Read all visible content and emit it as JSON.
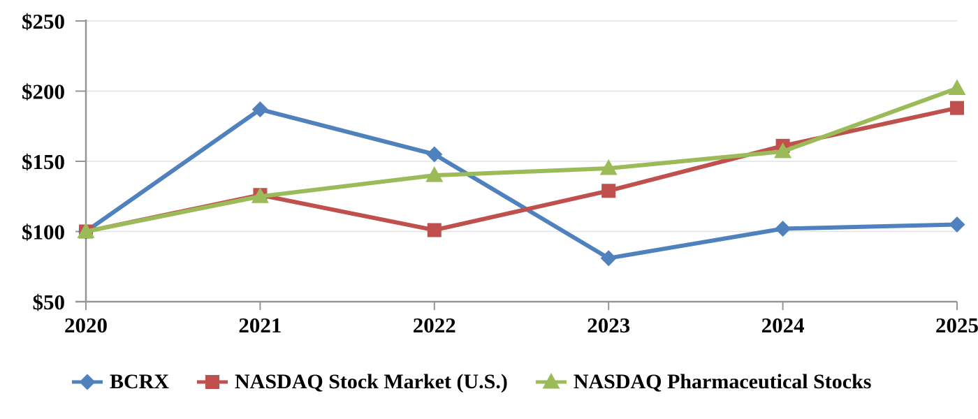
{
  "chart_data": {
    "type": "line",
    "x": [
      "2020",
      "2021",
      "2022",
      "2023",
      "2024",
      "2025"
    ],
    "series": [
      {
        "name": "BCRX",
        "color": "#4F81BD",
        "marker": "diamond",
        "values": [
          100,
          187,
          155,
          81,
          102,
          105
        ]
      },
      {
        "name": "NASDAQ Stock Market (U.S.)",
        "color": "#C0504D",
        "marker": "square",
        "values": [
          100,
          126,
          101,
          129,
          161,
          188
        ]
      },
      {
        "name": "NASDAQ Pharmaceutical Stocks",
        "color": "#9BBB59",
        "marker": "triangle",
        "values": [
          100,
          125,
          140,
          145,
          157,
          202
        ]
      }
    ],
    "title": "",
    "xlabel": "",
    "ylabel": "",
    "ylim": [
      50,
      250
    ],
    "ytick_step": 50,
    "ytick_labels": [
      "$50",
      "$100",
      "$150",
      "$200",
      "$250"
    ],
    "xtick_labels": [
      "2020",
      "2021",
      "2022",
      "2023",
      "2024",
      "2025"
    ],
    "grid": true,
    "legend_position": "bottom",
    "colors": {
      "axis": "#969696",
      "gridline": "#E2E2E2",
      "text": "#000000"
    }
  }
}
